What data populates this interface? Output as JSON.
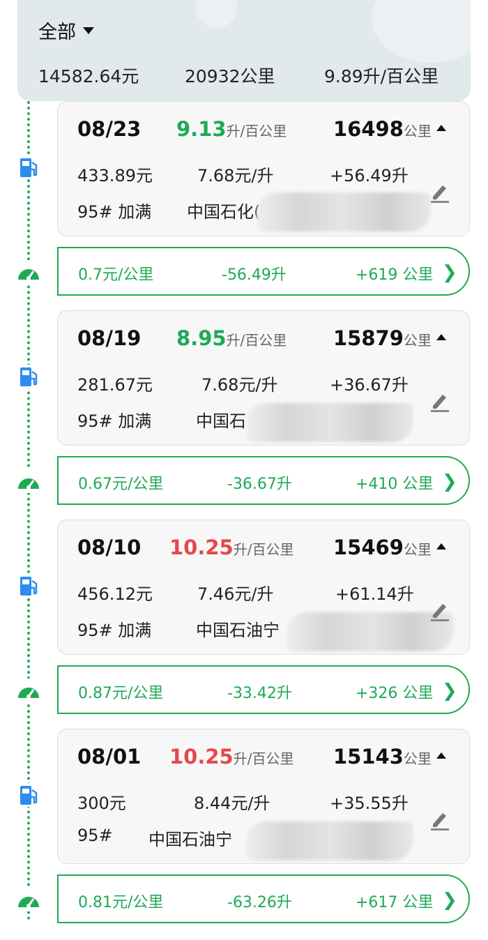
{
  "header": {
    "filter": "全部",
    "total_cost": "14582.64元",
    "total_distance": "20932公里",
    "avg_consumption": "9.89升/百公里"
  },
  "colors": {
    "green": "#1eaa55",
    "red": "#e5484d",
    "fuel_icon": "#2d8cf0"
  },
  "records": [
    {
      "date": "08/23",
      "consumption": "9.13",
      "consumption_unit": "升/百公里",
      "consumption_color": "green",
      "odometer": "16498",
      "odometer_unit": "公里",
      "cost": "433.89元",
      "price": "7.68元/升",
      "volume": "+56.49升",
      "fuel": "95# 加满",
      "station": "中国石化(/",
      "segment": {
        "cost_per_km": "0.7元/公里",
        "fuel_used": "-56.49升",
        "distance": "+619 公里"
      }
    },
    {
      "date": "08/19",
      "consumption": "8.95",
      "consumption_unit": "升/百公里",
      "consumption_color": "green",
      "odometer": "15879",
      "odometer_unit": "公里",
      "cost": "281.67元",
      "price": "7.68元/升",
      "volume": "+36.67升",
      "fuel": "95# 加满",
      "station": "中国石",
      "segment": {
        "cost_per_km": "0.67元/公里",
        "fuel_used": "-36.67升",
        "distance": "+410 公里"
      }
    },
    {
      "date": "08/10",
      "consumption": "10.25",
      "consumption_unit": "升/百公里",
      "consumption_color": "red",
      "odometer": "15469",
      "odometer_unit": "公里",
      "cost": "456.12元",
      "price": "7.46元/升",
      "volume": "+61.14升",
      "fuel": "95# 加满",
      "station": "中国石油宁",
      "segment": {
        "cost_per_km": "0.87元/公里",
        "fuel_used": "-33.42升",
        "distance": "+326 公里"
      }
    },
    {
      "date": "08/01",
      "consumption": "10.25",
      "consumption_unit": "升/百公里",
      "consumption_color": "red",
      "odometer": "15143",
      "odometer_unit": "公里",
      "cost": "300元",
      "price": "8.44元/升",
      "volume": "+35.55升",
      "fuel": "95#",
      "station": "中国石油宁",
      "segment": {
        "cost_per_km": "0.81元/公里",
        "fuel_used": "-63.26升",
        "distance": "+617 公里"
      }
    }
  ]
}
